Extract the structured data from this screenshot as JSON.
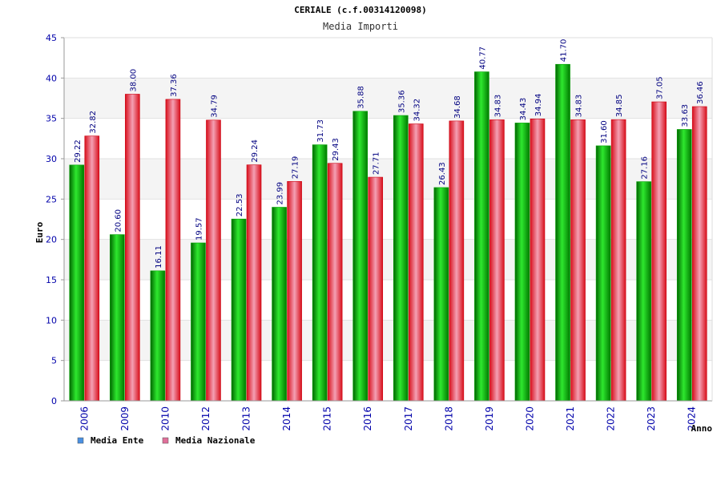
{
  "chart_data": {
    "type": "bar",
    "title": "CERIALE (c.f.00314120098)",
    "subtitle": "Media Importi",
    "xlabel": "Anno",
    "ylabel": "Euro",
    "ylim": [
      0,
      45
    ],
    "yticks": [
      0,
      5,
      10,
      15,
      20,
      25,
      30,
      35,
      40,
      45
    ],
    "grid": true,
    "legend_position": "bottom-left",
    "categories": [
      "2006",
      "2009",
      "2010",
      "2012",
      "2013",
      "2014",
      "2015",
      "2016",
      "2017",
      "2018",
      "2019",
      "2020",
      "2021",
      "2022",
      "2023",
      "2024"
    ],
    "series": [
      {
        "name": "Media Ente",
        "color": "#00b000",
        "legend_color": "#4a90e2",
        "values": [
          29.22,
          20.6,
          16.11,
          19.57,
          22.53,
          23.99,
          31.73,
          35.88,
          35.36,
          26.43,
          40.77,
          34.43,
          41.7,
          31.6,
          27.16,
          33.63
        ],
        "labels": [
          "29.22",
          "20.60",
          "16.11",
          "19.57",
          "22.53",
          "23.99",
          "31.73",
          "35.88",
          "35.36",
          "26.43",
          "40.77",
          "34.43",
          "41.70",
          "31.60",
          "27.16",
          "33.63"
        ]
      },
      {
        "name": "Media Nazionale",
        "color": "#e8202a",
        "legend_color": "#e0709a",
        "values": [
          32.82,
          38.0,
          37.36,
          34.79,
          29.24,
          27.19,
          29.43,
          27.71,
          34.32,
          34.68,
          34.83,
          34.94,
          34.83,
          34.85,
          37.05,
          36.46
        ],
        "labels": [
          "32.82",
          "38.00",
          "37.36",
          "34.79",
          "29.24",
          "27.19",
          "29.43",
          "27.71",
          "34.32",
          "34.68",
          "34.83",
          "34.94",
          "34.83",
          "34.85",
          "37.05",
          "36.46"
        ]
      }
    ]
  }
}
